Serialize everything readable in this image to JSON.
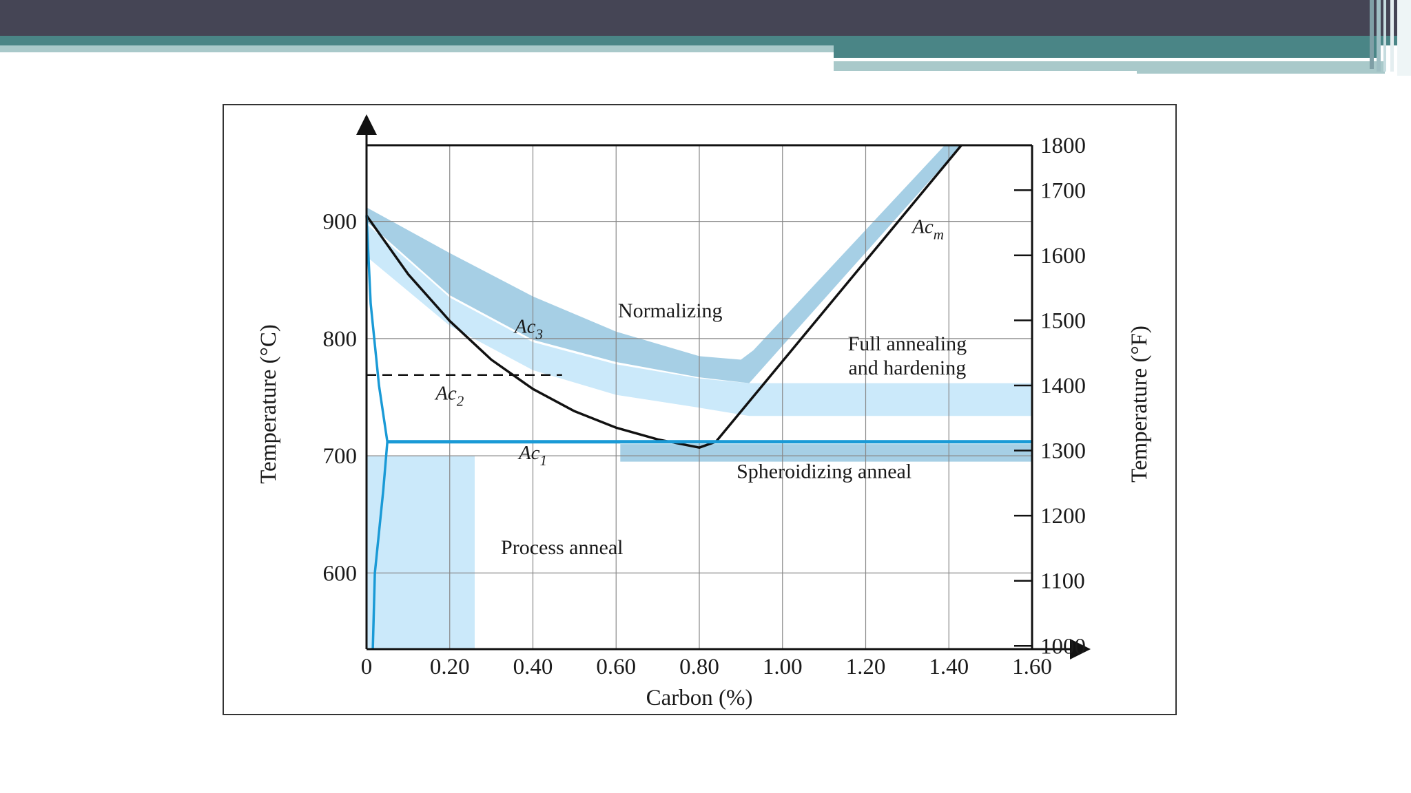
{
  "theme": {
    "header_dark": "#454555",
    "header_teal": "#4a8586",
    "header_light": "#a9c9ca",
    "region_dark_blue": "#a6cfe5",
    "region_light_blue": "#cbe9fa",
    "phase_line_blue": "#1a9ad6",
    "line_black": "#111111",
    "grid": "#888888"
  },
  "chart_data": {
    "type": "area",
    "title": "",
    "xlabel": "Carbon (%)",
    "ylabel": "Temperature (°C)",
    "ylabel_right": "Temperature (°F)",
    "xlim": [
      0,
      1.6
    ],
    "ylim": [
      535,
      965
    ],
    "x_ticks": [
      0,
      0.2,
      0.4,
      0.6,
      0.8,
      1.0,
      1.2,
      1.4,
      1.6
    ],
    "x_tick_labels": [
      "0",
      "0.20",
      "0.40",
      "0.60",
      "0.80",
      "1.00",
      "1.20",
      "1.40",
      "1.60"
    ],
    "y_ticks": [
      600,
      700,
      800,
      900
    ],
    "y_tick_labels": [
      "600",
      "700",
      "800",
      "900"
    ],
    "y_right_ticks_f": [
      1000,
      1100,
      1200,
      1300,
      1400,
      1500,
      1600,
      1700,
      1800
    ],
    "y_right_tick_labels": [
      "1000",
      "1100",
      "1200",
      "1300",
      "1400",
      "1500",
      "1600",
      "1700",
      "1800"
    ],
    "grid": true,
    "lines": [
      {
        "name": "Ac3",
        "label": "Ac",
        "sub": "3",
        "label_at": [
          0.39,
          805
        ],
        "points": [
          [
            0,
            905
          ],
          [
            0.1,
            855
          ],
          [
            0.2,
            815
          ],
          [
            0.3,
            782
          ],
          [
            0.4,
            757
          ],
          [
            0.5,
            738
          ],
          [
            0.6,
            724
          ],
          [
            0.7,
            714
          ],
          [
            0.8,
            707
          ],
          [
            0.84,
            712
          ]
        ]
      },
      {
        "name": "Acm",
        "label": "Ac",
        "sub": "m",
        "label_at": [
          1.35,
          890
        ],
        "points": [
          [
            0.84,
            712
          ],
          [
            1.43,
            965
          ]
        ]
      },
      {
        "name": "Ac1",
        "label": "Ac",
        "sub": "1",
        "label_at": [
          0.4,
          697
        ],
        "points": [
          [
            0.05,
            712
          ],
          [
            1.6,
            712
          ]
        ]
      },
      {
        "name": "Ac2",
        "label": "Ac",
        "sub": "2",
        "label_at": [
          0.2,
          748
        ],
        "points": [
          [
            0,
            769
          ],
          [
            0.47,
            769
          ]
        ]
      },
      {
        "name": "alpha-boundary",
        "points": [
          [
            0,
            905
          ],
          [
            0.01,
            830
          ],
          [
            0.03,
            760
          ],
          [
            0.05,
            712
          ],
          [
            0.04,
            670
          ],
          [
            0.02,
            600
          ],
          [
            0.015,
            535
          ]
        ]
      }
    ],
    "regions": [
      {
        "name": "Normalizing",
        "label": "Normalizing",
        "label_at": [
          0.73,
          818
        ],
        "polygon": [
          [
            0,
            912
          ],
          [
            0.2,
            873
          ],
          [
            0.4,
            836
          ],
          [
            0.6,
            806
          ],
          [
            0.8,
            785
          ],
          [
            0.9,
            782
          ],
          [
            0.93,
            790
          ],
          [
            1.39,
            965
          ],
          [
            1.43,
            965
          ],
          [
            0.92,
            762
          ],
          [
            0.8,
            767
          ],
          [
            0.6,
            780
          ],
          [
            0.4,
            799
          ],
          [
            0.2,
            837
          ],
          [
            0,
            900
          ]
        ]
      },
      {
        "name": "Full annealing and hardening",
        "label_lines": [
          "Full annealing",
          "and hardening"
        ],
        "label_at": [
          1.3,
          790
        ],
        "polygon": [
          [
            0,
            898
          ],
          [
            0.2,
            835
          ],
          [
            0.4,
            797
          ],
          [
            0.6,
            778
          ],
          [
            0.8,
            766
          ],
          [
            0.92,
            762
          ],
          [
            1.6,
            762
          ],
          [
            1.6,
            734
          ],
          [
            0.92,
            734
          ],
          [
            0.8,
            741
          ],
          [
            0.6,
            752
          ],
          [
            0.4,
            773
          ],
          [
            0.2,
            811
          ],
          [
            0,
            870
          ]
        ]
      },
      {
        "name": "Spheroidizing anneal",
        "label": "Spheroidizing anneal",
        "label_at": [
          1.1,
          681
        ],
        "polygon": [
          [
            0.61,
            710
          ],
          [
            1.6,
            710
          ],
          [
            1.6,
            695
          ],
          [
            0.61,
            695
          ]
        ]
      },
      {
        "name": "Process anneal",
        "label": "Process anneal",
        "label_at": [
          0.47,
          616
        ],
        "polygon": [
          [
            0,
            700
          ],
          [
            0.26,
            700
          ],
          [
            0.26,
            535
          ],
          [
            0,
            535
          ]
        ]
      }
    ]
  }
}
